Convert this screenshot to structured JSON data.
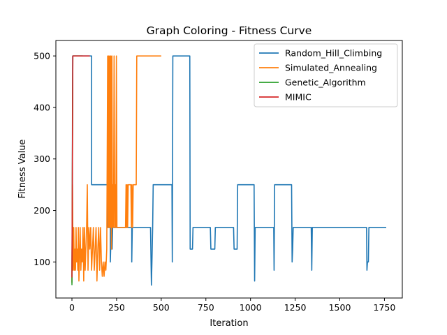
{
  "chart_data": {
    "type": "line",
    "title": "Graph Coloring - Fitness Curve",
    "xlabel": "Iteration",
    "ylabel": "Fitness Value",
    "xlim": [
      -90,
      1850
    ],
    "ylim": [
      30,
      530
    ],
    "xticks": [
      0,
      250,
      500,
      750,
      1000,
      1250,
      1500,
      1750
    ],
    "yticks": [
      100,
      200,
      300,
      400,
      500
    ],
    "grid": false,
    "legend_position": "top-right",
    "series": [
      {
        "name": "Random_Hill_Climbing",
        "color": "#1f77b4",
        "points": [
          [
            0,
            60
          ],
          [
            1,
            125
          ],
          [
            2,
            250
          ],
          [
            4,
            500
          ],
          [
            110,
            500
          ],
          [
            110,
            250
          ],
          [
            200,
            250
          ],
          [
            200,
            167
          ],
          [
            215,
            167
          ],
          [
            215,
            100
          ],
          [
            220,
            167
          ],
          [
            225,
            125
          ],
          [
            228,
            167
          ],
          [
            335,
            167
          ],
          [
            335,
            100
          ],
          [
            338,
            167
          ],
          [
            440,
            167
          ],
          [
            445,
            55
          ],
          [
            448,
            100
          ],
          [
            452,
            167
          ],
          [
            455,
            250
          ],
          [
            560,
            250
          ],
          [
            562,
            100
          ],
          [
            565,
            500
          ],
          [
            660,
            500
          ],
          [
            662,
            125
          ],
          [
            675,
            125
          ],
          [
            678,
            167
          ],
          [
            775,
            167
          ],
          [
            778,
            125
          ],
          [
            800,
            125
          ],
          [
            803,
            167
          ],
          [
            905,
            167
          ],
          [
            908,
            125
          ],
          [
            925,
            125
          ],
          [
            928,
            250
          ],
          [
            1020,
            250
          ],
          [
            1023,
            63
          ],
          [
            1026,
            167
          ],
          [
            1130,
            167
          ],
          [
            1132,
            84
          ],
          [
            1135,
            250
          ],
          [
            1230,
            250
          ],
          [
            1233,
            100
          ],
          [
            1236,
            125
          ],
          [
            1239,
            167
          ],
          [
            1340,
            167
          ],
          [
            1343,
            84
          ],
          [
            1346,
            167
          ],
          [
            1650,
            167
          ],
          [
            1652,
            84
          ],
          [
            1655,
            100
          ],
          [
            1660,
            100
          ],
          [
            1663,
            167
          ],
          [
            1760,
            167
          ]
        ]
      },
      {
        "name": "Simulated_Annealing",
        "color": "#ff7f0e",
        "points": [
          [
            0,
            60
          ],
          [
            3,
            250
          ],
          [
            6,
            84
          ],
          [
            10,
            167
          ],
          [
            13,
            84
          ],
          [
            17,
            125
          ],
          [
            20,
            84
          ],
          [
            23,
            167
          ],
          [
            26,
            100
          ],
          [
            30,
            125
          ],
          [
            33,
            84
          ],
          [
            36,
            167
          ],
          [
            39,
            63
          ],
          [
            42,
            100
          ],
          [
            46,
            167
          ],
          [
            50,
            84
          ],
          [
            54,
            125
          ],
          [
            58,
            100
          ],
          [
            62,
            167
          ],
          [
            66,
            63
          ],
          [
            70,
            167
          ],
          [
            74,
            84
          ],
          [
            78,
            125
          ],
          [
            82,
            167
          ],
          [
            86,
            250
          ],
          [
            90,
            84
          ],
          [
            95,
            167
          ],
          [
            100,
            125
          ],
          [
            105,
            167
          ],
          [
            110,
            84
          ],
          [
            115,
            125
          ],
          [
            120,
            167
          ],
          [
            125,
            84
          ],
          [
            130,
            125
          ],
          [
            135,
            167
          ],
          [
            140,
            63
          ],
          [
            145,
            125
          ],
          [
            150,
            167
          ],
          [
            155,
            84
          ],
          [
            160,
            167
          ],
          [
            165,
            100
          ],
          [
            170,
            72
          ],
          [
            175,
            100
          ],
          [
            180,
            72
          ],
          [
            185,
            100
          ],
          [
            190,
            84
          ],
          [
            195,
            125
          ],
          [
            200,
            500
          ],
          [
            203,
            167
          ],
          [
            206,
            500
          ],
          [
            209,
            167
          ],
          [
            212,
            500
          ],
          [
            215,
            167
          ],
          [
            218,
            500
          ],
          [
            221,
            125
          ],
          [
            224,
            500
          ],
          [
            227,
            167
          ],
          [
            230,
            250
          ],
          [
            233,
            167
          ],
          [
            236,
            500
          ],
          [
            240,
            167
          ],
          [
            243,
            250
          ],
          [
            246,
            167
          ],
          [
            249,
            500
          ],
          [
            252,
            167
          ],
          [
            300,
            167
          ],
          [
            303,
            250
          ],
          [
            306,
            167
          ],
          [
            309,
            250
          ],
          [
            312,
            167
          ],
          [
            315,
            250
          ],
          [
            330,
            250
          ],
          [
            333,
            167
          ],
          [
            336,
            250
          ],
          [
            340,
            167
          ],
          [
            343,
            250
          ],
          [
            360,
            250
          ],
          [
            363,
            500
          ],
          [
            500,
            500
          ]
        ]
      },
      {
        "name": "Genetic_Algorithm",
        "color": "#2ca02c",
        "points": [
          [
            0,
            55
          ],
          [
            5,
            500
          ],
          [
            60,
            500
          ]
        ]
      },
      {
        "name": "MIMIC",
        "color": "#d62728",
        "points": [
          [
            0,
            70
          ],
          [
            5,
            500
          ],
          [
            100,
            500
          ]
        ]
      }
    ]
  }
}
